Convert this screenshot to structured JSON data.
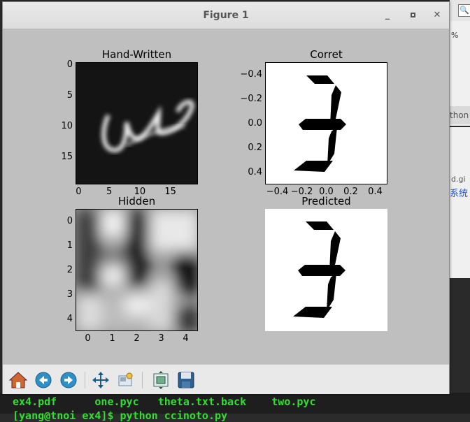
{
  "window": {
    "title": "Figure 1"
  },
  "subplots": {
    "top_left": {
      "title": "Hand-Written",
      "yticks": [
        "0",
        "5",
        "10",
        "15"
      ],
      "xticks": [
        "0",
        "5",
        "10",
        "15"
      ]
    },
    "top_right": {
      "title": "Corret",
      "yticks": [
        "−0.4",
        "−0.2",
        "0.0",
        "0.2",
        "0.4"
      ],
      "xticks": [
        "−0.4",
        "−0.2",
        "0.0",
        "0.2",
        "0.4"
      ]
    },
    "bottom_left": {
      "title": "Hidden",
      "yticks": [
        "0",
        "1",
        "2",
        "3",
        "4"
      ],
      "xticks": [
        "0",
        "1",
        "2",
        "3",
        "4"
      ]
    },
    "bottom_right": {
      "title": "Predicted"
    }
  },
  "toolbar": {
    "home": "home-icon",
    "back": "back-arrow-icon",
    "forward": "forward-arrow-icon",
    "pan": "pan-icon",
    "zoom": "zoom-icon",
    "subplots": "subplots-config-icon",
    "save": "save-icon"
  },
  "background": {
    "right_percent": "%",
    "right_tab": "thon",
    "right_link": "d.gi",
    "right_cn": "系统"
  },
  "terminal": {
    "line1": "ex4.pdf      one.pyc   theta.txt.back    two.pyc",
    "line2": "[yang@tnoi ex4]$ python ccinoto.py"
  },
  "colors": {
    "canvas": "#bfbfbf",
    "terminal_text": "#33dd33"
  }
}
